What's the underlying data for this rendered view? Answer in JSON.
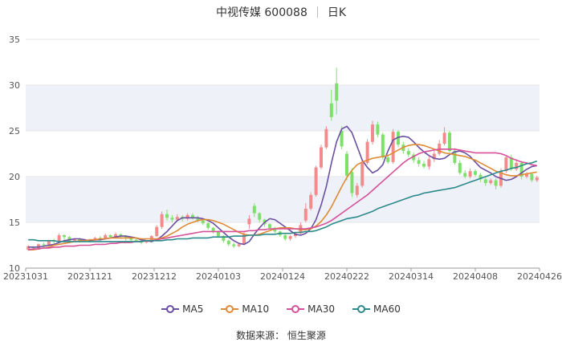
{
  "header": {
    "stock": "中视传媒 600088",
    "period": "日K"
  },
  "source": "数据来源：  恒生聚源",
  "colors": {
    "up": "#f28b8b",
    "down": "#7ee06a",
    "ma5": "#6b4fa0",
    "ma10": "#e08a35",
    "ma30": "#d7509a",
    "ma60": "#2c8a8a",
    "grid": "#e6e6e6",
    "band": "#eef1f8"
  },
  "chart_data": {
    "type": "candlestick",
    "ylim": [
      10,
      35
    ],
    "yticks": [
      "10",
      "15",
      "20",
      "25",
      "30",
      "35"
    ],
    "xticks": [
      "20231031",
      "20231121",
      "20231212",
      "20240103",
      "20240124",
      "20240222",
      "20240314",
      "20240408",
      "20240426"
    ],
    "candles": [
      [
        12.0,
        12.4,
        11.9,
        12.5
      ],
      [
        12.3,
        12.2,
        12.0,
        12.4
      ],
      [
        12.2,
        12.6,
        12.1,
        12.7
      ],
      [
        12.6,
        12.5,
        12.3,
        12.8
      ],
      [
        12.5,
        13.0,
        12.4,
        13.1
      ],
      [
        13.0,
        12.9,
        12.7,
        13.2
      ],
      [
        12.9,
        13.6,
        12.8,
        13.8
      ],
      [
        13.6,
        13.4,
        13.1,
        13.7
      ],
      [
        13.4,
        13.0,
        12.8,
        13.5
      ],
      [
        13.0,
        13.2,
        12.9,
        13.3
      ],
      [
        13.2,
        13.0,
        12.8,
        13.3
      ],
      [
        13.0,
        13.1,
        12.9,
        13.2
      ],
      [
        13.1,
        13.0,
        12.8,
        13.2
      ],
      [
        13.0,
        13.3,
        12.9,
        13.4
      ],
      [
        13.3,
        13.2,
        13.0,
        13.5
      ],
      [
        13.2,
        13.6,
        13.1,
        13.8
      ],
      [
        13.6,
        13.4,
        13.2,
        13.7
      ],
      [
        13.4,
        13.7,
        13.3,
        13.9
      ],
      [
        13.7,
        13.5,
        13.2,
        13.8
      ],
      [
        13.5,
        13.3,
        13.0,
        13.6
      ],
      [
        13.3,
        13.1,
        12.9,
        13.4
      ],
      [
        13.1,
        13.0,
        12.8,
        13.2
      ],
      [
        13.0,
        12.8,
        12.6,
        13.1
      ],
      [
        12.8,
        12.9,
        12.7,
        13.0
      ],
      [
        12.9,
        13.5,
        12.8,
        13.6
      ],
      [
        13.5,
        14.5,
        13.4,
        14.7
      ],
      [
        14.5,
        15.9,
        14.3,
        16.2
      ],
      [
        15.9,
        15.5,
        15.2,
        16.4
      ],
      [
        15.5,
        15.3,
        15.0,
        15.8
      ],
      [
        15.3,
        15.6,
        15.1,
        15.9
      ],
      [
        15.6,
        15.4,
        15.1,
        15.8
      ],
      [
        15.4,
        15.8,
        15.2,
        16.0
      ],
      [
        15.8,
        15.5,
        15.3,
        16.0
      ],
      [
        15.5,
        15.2,
        15.0,
        15.7
      ],
      [
        15.2,
        14.9,
        14.7,
        15.3
      ],
      [
        14.9,
        14.4,
        14.2,
        15.0
      ],
      [
        14.4,
        14.0,
        13.8,
        14.5
      ],
      [
        14.0,
        13.5,
        13.3,
        14.1
      ],
      [
        13.5,
        13.0,
        12.8,
        13.6
      ],
      [
        13.0,
        12.6,
        12.4,
        13.1
      ],
      [
        12.6,
        12.4,
        12.2,
        12.8
      ],
      [
        12.4,
        12.6,
        12.3,
        12.8
      ],
      [
        12.6,
        13.7,
        12.5,
        14.0
      ],
      [
        14.8,
        15.4,
        14.3,
        15.8
      ],
      [
        16.8,
        16.0,
        15.6,
        17.1
      ],
      [
        16.0,
        15.3,
        15.0,
        16.1
      ],
      [
        15.3,
        14.8,
        14.5,
        15.4
      ],
      [
        14.8,
        14.4,
        14.2,
        14.9
      ],
      [
        14.4,
        14.0,
        13.8,
        14.5
      ],
      [
        14.0,
        13.6,
        13.4,
        14.1
      ],
      [
        13.6,
        13.2,
        13.0,
        13.7
      ],
      [
        13.2,
        13.5,
        13.0,
        13.6
      ],
      [
        13.5,
        13.8,
        13.3,
        13.9
      ],
      [
        13.8,
        14.7,
        13.7,
        15.0
      ],
      [
        15.2,
        16.5,
        15.0,
        17.1
      ],
      [
        16.5,
        18.0,
        16.3,
        18.3
      ],
      [
        18.0,
        21.0,
        17.8,
        21.2
      ],
      [
        21.0,
        23.2,
        20.8,
        23.5
      ],
      [
        23.2,
        25.2,
        23.0,
        25.5
      ],
      [
        28.0,
        26.5,
        26.1,
        29.5
      ],
      [
        30.2,
        28.3,
        26.8,
        31.9
      ],
      [
        25.0,
        23.3,
        23.0,
        25.5
      ],
      [
        22.5,
        20.1,
        19.6,
        22.8
      ],
      [
        20.5,
        18.2,
        17.8,
        20.9
      ],
      [
        18.0,
        19.0,
        17.7,
        19.3
      ],
      [
        19.0,
        21.5,
        18.8,
        21.8
      ],
      [
        21.5,
        23.8,
        21.3,
        24.1
      ],
      [
        23.8,
        25.7,
        23.5,
        26.1
      ],
      [
        25.7,
        24.6,
        24.3,
        26.0
      ],
      [
        24.6,
        22.1,
        21.9,
        24.8
      ],
      [
        22.1,
        21.6,
        21.4,
        22.4
      ],
      [
        21.6,
        24.9,
        21.4,
        25.2
      ],
      [
        24.9,
        23.5,
        23.2,
        25.1
      ],
      [
        23.5,
        22.8,
        22.5,
        23.8
      ],
      [
        22.8,
        22.4,
        22.1,
        23.1
      ],
      [
        22.4,
        21.8,
        21.5,
        22.6
      ],
      [
        21.8,
        21.4,
        21.1,
        22.1
      ],
      [
        21.4,
        21.1,
        20.9,
        21.7
      ],
      [
        21.1,
        21.9,
        20.8,
        22.2
      ],
      [
        21.9,
        22.5,
        21.6,
        22.8
      ],
      [
        22.5,
        23.6,
        22.3,
        24.0
      ],
      [
        23.6,
        24.8,
        23.4,
        25.4
      ],
      [
        24.8,
        22.8,
        22.6,
        25.0
      ],
      [
        22.8,
        21.5,
        21.3,
        23.1
      ],
      [
        21.5,
        20.4,
        20.2,
        21.8
      ],
      [
        20.4,
        20.0,
        19.8,
        20.7
      ],
      [
        20.0,
        20.6,
        19.8,
        20.9
      ],
      [
        20.6,
        20.2,
        20.0,
        20.8
      ],
      [
        20.2,
        19.7,
        19.4,
        20.4
      ],
      [
        19.7,
        19.3,
        19.0,
        19.9
      ],
      [
        19.3,
        19.6,
        19.1,
        19.8
      ],
      [
        19.6,
        19.0,
        18.6,
        19.8
      ],
      [
        19.0,
        20.6,
        18.8,
        20.9
      ],
      [
        20.6,
        22.1,
        20.4,
        22.3
      ],
      [
        22.1,
        20.8,
        20.6,
        22.4
      ],
      [
        20.8,
        21.5,
        20.6,
        21.9
      ],
      [
        21.5,
        20.0,
        19.7,
        21.7
      ],
      [
        20.0,
        20.3,
        19.8,
        20.5
      ],
      [
        20.3,
        19.6,
        19.4,
        20.4
      ],
      [
        19.6,
        19.9,
        19.4,
        20.1
      ]
    ],
    "series": [
      {
        "name": "MA5",
        "values": [
          12.3,
          12.3,
          12.3,
          12.4,
          12.5,
          12.6,
          12.8,
          13.0,
          13.1,
          13.2,
          13.2,
          13.1,
          13.0,
          13.1,
          13.1,
          13.2,
          13.3,
          13.4,
          13.5,
          13.5,
          13.4,
          13.3,
          13.1,
          13.0,
          12.9,
          13.1,
          13.5,
          14.0,
          14.6,
          15.2,
          15.5,
          15.5,
          15.5,
          15.5,
          15.4,
          15.2,
          14.9,
          14.4,
          13.9,
          13.4,
          13.0,
          12.7,
          12.6,
          12.9,
          13.7,
          14.4,
          15.0,
          15.4,
          15.3,
          14.9,
          14.5,
          14.1,
          13.7,
          13.6,
          13.8,
          14.3,
          15.3,
          16.9,
          18.9,
          21.5,
          23.8,
          25.2,
          25.5,
          24.8,
          23.3,
          21.8,
          21.0,
          20.4,
          20.7,
          21.3,
          22.8,
          24.0,
          24.3,
          24.4,
          24.3,
          23.8,
          23.2,
          22.7,
          22.3,
          22.0,
          21.9,
          22.0,
          22.4,
          22.7,
          22.8,
          22.6,
          22.2,
          21.6,
          21.0,
          20.7,
          20.4,
          20.0,
          19.8,
          19.6,
          19.7,
          20.0,
          20.4,
          20.8,
          21.1,
          21.2
        ]
      },
      {
        "name": "MA10",
        "values": [
          12.0,
          12.0,
          12.1,
          12.2,
          12.3,
          12.5,
          12.6,
          12.7,
          12.8,
          12.9,
          13.0,
          13.0,
          13.1,
          13.1,
          13.2,
          13.2,
          13.3,
          13.3,
          13.3,
          13.3,
          13.3,
          13.3,
          13.2,
          13.2,
          13.2,
          13.2,
          13.3,
          13.5,
          13.8,
          14.1,
          14.5,
          14.8,
          15.0,
          15.2,
          15.3,
          15.3,
          15.2,
          15.0,
          14.8,
          14.5,
          14.2,
          13.9,
          13.7,
          13.6,
          13.6,
          13.7,
          13.9,
          14.1,
          14.3,
          14.4,
          14.4,
          14.4,
          14.3,
          14.2,
          14.2,
          14.3,
          14.6,
          15.1,
          15.8,
          16.7,
          17.8,
          18.9,
          19.9,
          20.7,
          21.3,
          21.6,
          21.8,
          22.0,
          22.1,
          22.2,
          22.3,
          22.6,
          22.9,
          23.2,
          23.4,
          23.5,
          23.5,
          23.4,
          23.2,
          23.0,
          22.8,
          22.6,
          22.5,
          22.4,
          22.3,
          22.2,
          22.0,
          21.8,
          21.5,
          21.2,
          20.9,
          20.6,
          20.4,
          20.2,
          20.1,
          20.1,
          20.2,
          20.3,
          20.4,
          20.5
        ]
      },
      {
        "name": "MA30",
        "values": [
          12.0,
          12.1,
          12.1,
          12.2,
          12.2,
          12.3,
          12.3,
          12.4,
          12.4,
          12.4,
          12.5,
          12.5,
          12.5,
          12.6,
          12.6,
          12.6,
          12.7,
          12.7,
          12.8,
          12.8,
          12.8,
          12.9,
          12.9,
          13.0,
          13.0,
          13.1,
          13.2,
          13.3,
          13.4,
          13.5,
          13.6,
          13.7,
          13.8,
          13.9,
          14.0,
          14.0,
          14.0,
          14.0,
          14.0,
          14.0,
          14.0,
          14.0,
          14.0,
          14.1,
          14.1,
          14.2,
          14.2,
          14.3,
          14.3,
          14.3,
          14.3,
          14.3,
          14.3,
          14.3,
          14.3,
          14.4,
          14.5,
          14.7,
          14.9,
          15.2,
          15.6,
          16.0,
          16.4,
          16.8,
          17.2,
          17.6,
          18.0,
          18.5,
          19.0,
          19.5,
          20.0,
          20.5,
          21.0,
          21.5,
          21.9,
          22.2,
          22.5,
          22.7,
          22.8,
          22.9,
          23.0,
          23.0,
          23.0,
          23.0,
          22.9,
          22.8,
          22.7,
          22.6,
          22.6,
          22.6,
          22.6,
          22.6,
          22.5,
          22.3,
          22.0,
          21.8,
          21.6,
          21.5,
          21.3,
          21.2
        ]
      },
      {
        "name": "MA60",
        "values": [
          13.1,
          13.1,
          13.0,
          13.0,
          13.0,
          13.0,
          12.9,
          12.9,
          12.9,
          12.9,
          12.9,
          12.9,
          12.9,
          12.9,
          12.9,
          12.9,
          12.9,
          12.9,
          12.9,
          12.9,
          12.9,
          12.9,
          12.9,
          13.0,
          13.0,
          13.0,
          13.0,
          13.1,
          13.1,
          13.2,
          13.2,
          13.2,
          13.3,
          13.3,
          13.3,
          13.3,
          13.4,
          13.4,
          13.4,
          13.4,
          13.5,
          13.5,
          13.5,
          13.6,
          13.6,
          13.6,
          13.7,
          13.7,
          13.7,
          13.8,
          13.8,
          13.8,
          13.9,
          13.9,
          14.0,
          14.0,
          14.1,
          14.3,
          14.5,
          14.8,
          15.0,
          15.2,
          15.4,
          15.5,
          15.6,
          15.8,
          16.0,
          16.2,
          16.5,
          16.7,
          16.9,
          17.1,
          17.3,
          17.5,
          17.7,
          17.9,
          18.0,
          18.2,
          18.3,
          18.4,
          18.5,
          18.6,
          18.7,
          18.8,
          19.0,
          19.2,
          19.4,
          19.6,
          19.8,
          20.0,
          20.2,
          20.4,
          20.6,
          20.7,
          20.9,
          21.0,
          21.2,
          21.4,
          21.5,
          21.7
        ]
      }
    ]
  }
}
